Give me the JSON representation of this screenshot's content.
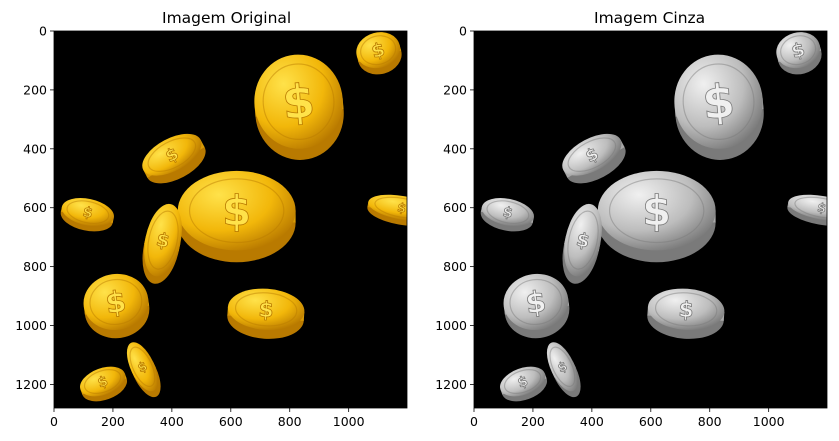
{
  "figure": {
    "panels": [
      {
        "title": "Imagem Original",
        "palette": "gold"
      },
      {
        "title": "Imagem Cinza",
        "palette": "gray"
      }
    ],
    "image_extent": {
      "width": 1198,
      "height": 1280
    },
    "x_ticks": [
      "0",
      "200",
      "400",
      "600",
      "800",
      "1000"
    ],
    "y_ticks": [
      "0",
      "200",
      "400",
      "600",
      "800",
      "1000",
      "1200"
    ],
    "background_color": "#000000",
    "colors": {
      "gold": {
        "light": "#ffe24a",
        "mid": "#f2b70a",
        "dark": "#b97a00",
        "rim": "#d89a05"
      },
      "gray": {
        "light": "#f0f0f0",
        "mid": "#bdbdbd",
        "dark": "#7a7a7a",
        "rim": "#a8a8a8"
      }
    },
    "coin_symbol": "$"
  }
}
